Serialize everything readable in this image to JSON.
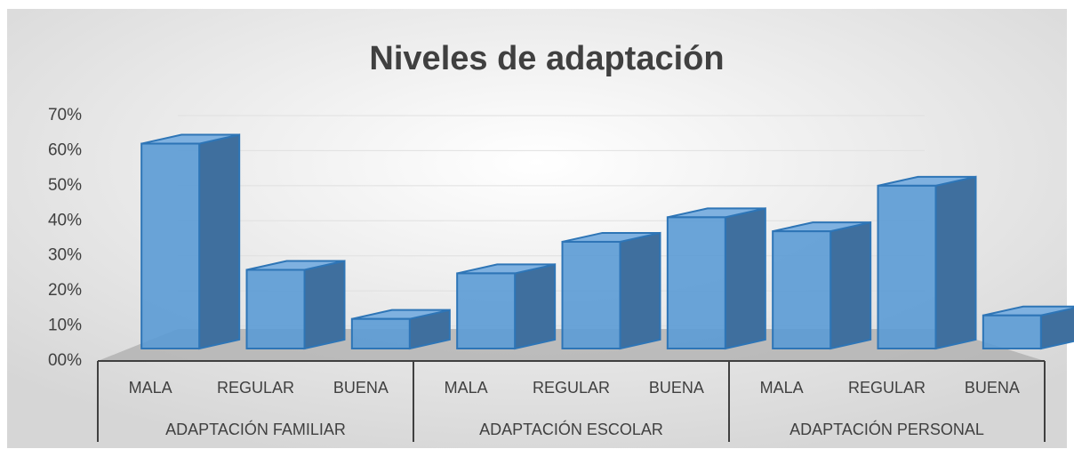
{
  "chart_data": {
    "type": "bar3d",
    "title": "Niveles de adaptación",
    "categories": [
      "MALA",
      "REGULAR",
      "BUENA",
      "MALA",
      "REGULAR",
      "BUENA",
      "MALA",
      "REGULAR",
      "BUENA"
    ],
    "groups": [
      "ADAPTACIÓN FAMILIAR",
      "ADAPTACIÓN ESCOLAR",
      "ADAPTACIÓN PERSONAL"
    ],
    "values": [
      62,
      26,
      12,
      25,
      34,
      41,
      37,
      50,
      13
    ],
    "color": "#5b9bd5",
    "ylim": [
      0,
      70
    ],
    "yticks": [
      {
        "value": 0,
        "label": "00%"
      },
      {
        "value": 10,
        "label": "10%"
      },
      {
        "value": 20,
        "label": "20%"
      },
      {
        "value": 30,
        "label": "30%"
      },
      {
        "value": 40,
        "label": "40%"
      },
      {
        "value": 50,
        "label": "50%"
      },
      {
        "value": 60,
        "label": "60%"
      },
      {
        "value": 70,
        "label": "70%"
      }
    ],
    "grid": true
  }
}
